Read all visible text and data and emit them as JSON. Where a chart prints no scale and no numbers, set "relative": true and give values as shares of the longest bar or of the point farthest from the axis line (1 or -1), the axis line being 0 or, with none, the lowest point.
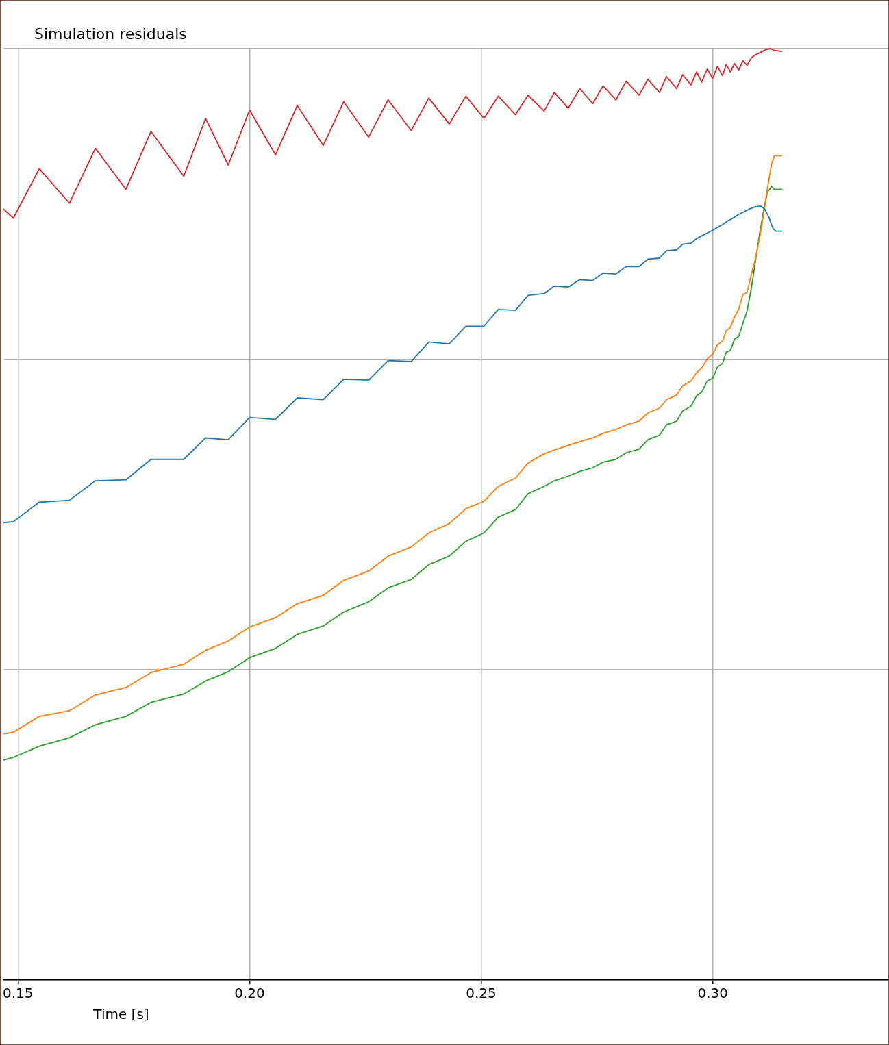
{
  "chart_data": {
    "type": "line",
    "title": "Simulation residuals",
    "xlabel": "Time [s]",
    "relative": true,
    "grid": true,
    "xlim": [
      0.1468,
      0.3379
    ],
    "xticks": [
      {
        "value": 0.15,
        "label": "0.15"
      },
      {
        "value": 0.2,
        "label": "0.20"
      },
      {
        "value": 0.25,
        "label": "0.25"
      },
      {
        "value": 0.3,
        "label": "0.30"
      }
    ],
    "series": [
      {
        "color": "#1f77b4",
        "x": [
          0.1468,
          0.149,
          0.1546,
          0.1611,
          0.1667,
          0.1733,
          0.1787,
          0.1858,
          0.1905,
          0.1954,
          0.2,
          0.2056,
          0.2103,
          0.2159,
          0.2203,
          0.2257,
          0.2299,
          0.2349,
          0.2387,
          0.2431,
          0.2467,
          0.2506,
          0.2537,
          0.2574,
          0.2601,
          0.2636,
          0.2658,
          0.2688,
          0.2713,
          0.2741,
          0.2763,
          0.2791,
          0.2813,
          0.2841,
          0.286,
          0.2885,
          0.29,
          0.2922,
          0.2935,
          0.2953,
          0.2965,
          0.2976,
          0.2988,
          0.3,
          0.301,
          0.3021,
          0.3032,
          0.3044,
          0.3056,
          0.3068,
          0.308,
          0.3091,
          0.3103,
          0.3112,
          0.3121,
          0.313,
          0.3136,
          0.315
        ],
        "values": [
          0.491,
          0.492,
          0.513,
          0.515,
          0.536,
          0.537,
          0.559,
          0.559,
          0.582,
          0.58,
          0.604,
          0.602,
          0.625,
          0.623,
          0.645,
          0.644,
          0.665,
          0.664,
          0.685,
          0.683,
          0.702,
          0.702,
          0.72,
          0.719,
          0.735,
          0.737,
          0.745,
          0.744,
          0.752,
          0.751,
          0.759,
          0.758,
          0.766,
          0.766,
          0.774,
          0.775,
          0.783,
          0.784,
          0.79,
          0.791,
          0.796,
          0.799,
          0.802,
          0.805,
          0.808,
          0.811,
          0.815,
          0.818,
          0.822,
          0.825,
          0.828,
          0.83,
          0.831,
          0.828,
          0.819,
          0.807,
          0.804,
          0.804
        ]
      },
      {
        "color": "#ff7f0e",
        "x": [
          0.1468,
          0.149,
          0.1546,
          0.1611,
          0.1667,
          0.1733,
          0.1787,
          0.1858,
          0.1905,
          0.1954,
          0.2,
          0.2056,
          0.2103,
          0.2159,
          0.2203,
          0.2257,
          0.2299,
          0.2349,
          0.2387,
          0.2431,
          0.2467,
          0.2506,
          0.2537,
          0.2574,
          0.2601,
          0.2636,
          0.2658,
          0.2688,
          0.2713,
          0.2741,
          0.2763,
          0.2791,
          0.2813,
          0.2841,
          0.286,
          0.2885,
          0.29,
          0.2922,
          0.2935,
          0.2953,
          0.2965,
          0.2976,
          0.2988,
          0.3,
          0.301,
          0.3021,
          0.3029,
          0.3038,
          0.3047,
          0.3056,
          0.3065,
          0.3074,
          0.3083,
          0.3091,
          0.31,
          0.3109,
          0.3118,
          0.3127,
          0.3133,
          0.315
        ],
        "values": [
          0.264,
          0.266,
          0.283,
          0.289,
          0.306,
          0.314,
          0.33,
          0.339,
          0.354,
          0.364,
          0.379,
          0.389,
          0.404,
          0.413,
          0.429,
          0.439,
          0.455,
          0.465,
          0.48,
          0.49,
          0.506,
          0.514,
          0.53,
          0.539,
          0.555,
          0.565,
          0.569,
          0.574,
          0.578,
          0.582,
          0.587,
          0.591,
          0.596,
          0.6,
          0.609,
          0.614,
          0.623,
          0.628,
          0.638,
          0.643,
          0.652,
          0.657,
          0.667,
          0.672,
          0.682,
          0.686,
          0.697,
          0.701,
          0.712,
          0.72,
          0.736,
          0.738,
          0.757,
          0.772,
          0.794,
          0.82,
          0.85,
          0.876,
          0.885,
          0.885
        ]
      },
      {
        "color": "#2ca02c",
        "x": [
          0.1468,
          0.149,
          0.1546,
          0.1611,
          0.1667,
          0.1733,
          0.1787,
          0.1858,
          0.1905,
          0.1954,
          0.2,
          0.2056,
          0.2103,
          0.2159,
          0.2203,
          0.2257,
          0.2299,
          0.2349,
          0.2387,
          0.2431,
          0.2467,
          0.2506,
          0.2537,
          0.2574,
          0.2601,
          0.2636,
          0.2658,
          0.2688,
          0.2713,
          0.2741,
          0.2763,
          0.2791,
          0.2813,
          0.2841,
          0.286,
          0.2885,
          0.29,
          0.2922,
          0.2935,
          0.2953,
          0.2965,
          0.2976,
          0.2988,
          0.3,
          0.301,
          0.3021,
          0.3029,
          0.3038,
          0.3047,
          0.3056,
          0.3065,
          0.3074,
          0.3083,
          0.3091,
          0.31,
          0.3109,
          0.3118,
          0.3127,
          0.3133,
          0.315
        ],
        "values": [
          0.236,
          0.239,
          0.251,
          0.26,
          0.274,
          0.283,
          0.298,
          0.307,
          0.321,
          0.331,
          0.346,
          0.356,
          0.371,
          0.38,
          0.395,
          0.406,
          0.421,
          0.43,
          0.446,
          0.455,
          0.471,
          0.48,
          0.497,
          0.505,
          0.522,
          0.53,
          0.536,
          0.541,
          0.546,
          0.55,
          0.556,
          0.559,
          0.566,
          0.57,
          0.58,
          0.585,
          0.596,
          0.6,
          0.611,
          0.616,
          0.627,
          0.631,
          0.643,
          0.646,
          0.658,
          0.662,
          0.674,
          0.676,
          0.688,
          0.691,
          0.705,
          0.718,
          0.742,
          0.768,
          0.798,
          0.824,
          0.846,
          0.852,
          0.849,
          0.849
        ]
      },
      {
        "color": "#d62728",
        "x": [
          0.1468,
          0.149,
          0.1546,
          0.1611,
          0.1667,
          0.1733,
          0.1787,
          0.1858,
          0.1905,
          0.1954,
          0.2,
          0.2056,
          0.2103,
          0.2159,
          0.2203,
          0.2257,
          0.2299,
          0.2349,
          0.2387,
          0.2431,
          0.2467,
          0.2506,
          0.2537,
          0.2574,
          0.2601,
          0.2636,
          0.2658,
          0.2688,
          0.2713,
          0.2741,
          0.2763,
          0.2791,
          0.2813,
          0.2841,
          0.286,
          0.2885,
          0.29,
          0.2922,
          0.2935,
          0.2953,
          0.2965,
          0.2976,
          0.2988,
          0.3,
          0.301,
          0.3021,
          0.3029,
          0.3038,
          0.3047,
          0.3056,
          0.3065,
          0.3074,
          0.3083,
          0.3091,
          0.3103,
          0.3115,
          0.3124,
          0.3133,
          0.315
        ],
        "values": [
          0.828,
          0.818,
          0.871,
          0.834,
          0.893,
          0.849,
          0.911,
          0.863,
          0.925,
          0.875,
          0.934,
          0.886,
          0.939,
          0.896,
          0.943,
          0.905,
          0.945,
          0.912,
          0.947,
          0.919,
          0.949,
          0.925,
          0.949,
          0.929,
          0.95,
          0.933,
          0.953,
          0.936,
          0.957,
          0.941,
          0.96,
          0.945,
          0.965,
          0.95,
          0.967,
          0.953,
          0.97,
          0.957,
          0.972,
          0.961,
          0.975,
          0.964,
          0.978,
          0.968,
          0.981,
          0.971,
          0.983,
          0.975,
          0.984,
          0.977,
          0.987,
          0.982,
          0.99,
          0.993,
          0.996,
          0.999,
          1,
          0.998,
          0.997
        ]
      }
    ]
  }
}
